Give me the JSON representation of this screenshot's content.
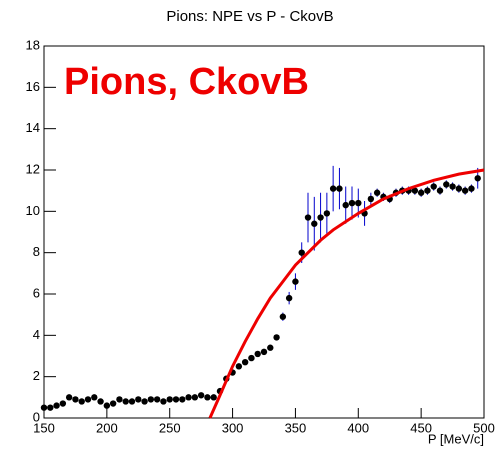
{
  "chart_data": {
    "type": "scatter",
    "title": "Pions: NPE vs P - CkovB",
    "x_label": "P [MeV/c]",
    "annotation": "Pions, CkovB",
    "xlim": [
      150,
      500
    ],
    "ylim": [
      0,
      18
    ],
    "xticks": [
      150,
      200,
      250,
      300,
      350,
      400,
      450,
      500
    ],
    "yticks": [
      0,
      2,
      4,
      6,
      8,
      10,
      12,
      14,
      16,
      18
    ],
    "series": [
      {
        "color": "#000000",
        "error_color": "#0000cc",
        "x": [
          150,
          155,
          160,
          165,
          170,
          175,
          180,
          185,
          190,
          195,
          200,
          205,
          210,
          215,
          220,
          225,
          230,
          235,
          240,
          245,
          250,
          255,
          260,
          265,
          270,
          275,
          280,
          285,
          290,
          295,
          300,
          305,
          310,
          315,
          320,
          325,
          330,
          335,
          340,
          345,
          350,
          355,
          360,
          365,
          370,
          375,
          380,
          385,
          390,
          395,
          400,
          405,
          410,
          415,
          420,
          425,
          430,
          435,
          440,
          445,
          450,
          455,
          460,
          465,
          470,
          475,
          480,
          485,
          490,
          495
        ],
        "values": [
          0.5,
          0.5,
          0.6,
          0.7,
          1.0,
          0.9,
          0.8,
          0.9,
          1.0,
          0.8,
          0.6,
          0.7,
          0.9,
          0.8,
          0.8,
          0.9,
          0.8,
          0.9,
          0.9,
          0.8,
          0.9,
          0.9,
          0.9,
          1.0,
          1.0,
          1.1,
          1.0,
          1.0,
          1.3,
          1.9,
          2.2,
          2.5,
          2.7,
          2.9,
          3.1,
          3.2,
          3.4,
          3.9,
          4.9,
          5.8,
          6.6,
          8.0,
          9.7,
          9.4,
          9.7,
          9.9,
          11.1,
          11.1,
          10.3,
          10.4,
          10.4,
          9.9,
          10.6,
          10.9,
          10.7,
          10.6,
          10.9,
          11.0,
          11.0,
          11.0,
          10.9,
          11.0,
          11.2,
          11.0,
          11.3,
          11.2,
          11.1,
          11.0,
          11.1,
          11.6
        ],
        "errors": [
          0.1,
          0.1,
          0.1,
          0.1,
          0.1,
          0.1,
          0.1,
          0.1,
          0.1,
          0.1,
          0.1,
          0.1,
          0.1,
          0.1,
          0.1,
          0.1,
          0.1,
          0.1,
          0.1,
          0.1,
          0.1,
          0.1,
          0.1,
          0.1,
          0.1,
          0.1,
          0.1,
          0.1,
          0.1,
          0.1,
          0.1,
          0.1,
          0.1,
          0.1,
          0.1,
          0.1,
          0.1,
          0.1,
          0.2,
          0.3,
          0.4,
          0.5,
          1.2,
          1.3,
          1.2,
          1.0,
          1.1,
          1.0,
          0.9,
          0.8,
          0.7,
          0.6,
          0.3,
          0.2,
          0.2,
          0.2,
          0.2,
          0.2,
          0.2,
          0.2,
          0.2,
          0.2,
          0.2,
          0.2,
          0.2,
          0.2,
          0.2,
          0.2,
          0.2,
          0.5
        ]
      },
      {
        "color": "#ee0000",
        "x": [
          282,
          290,
          300,
          310,
          320,
          330,
          340,
          350,
          360,
          370,
          380,
          390,
          400,
          420,
          440,
          460,
          480,
          500
        ],
        "values": [
          0,
          1.1,
          2.5,
          3.7,
          4.8,
          5.8,
          6.6,
          7.4,
          8.0,
          8.6,
          9.1,
          9.5,
          9.9,
          10.6,
          11.1,
          11.5,
          11.8,
          12.0
        ]
      }
    ]
  }
}
